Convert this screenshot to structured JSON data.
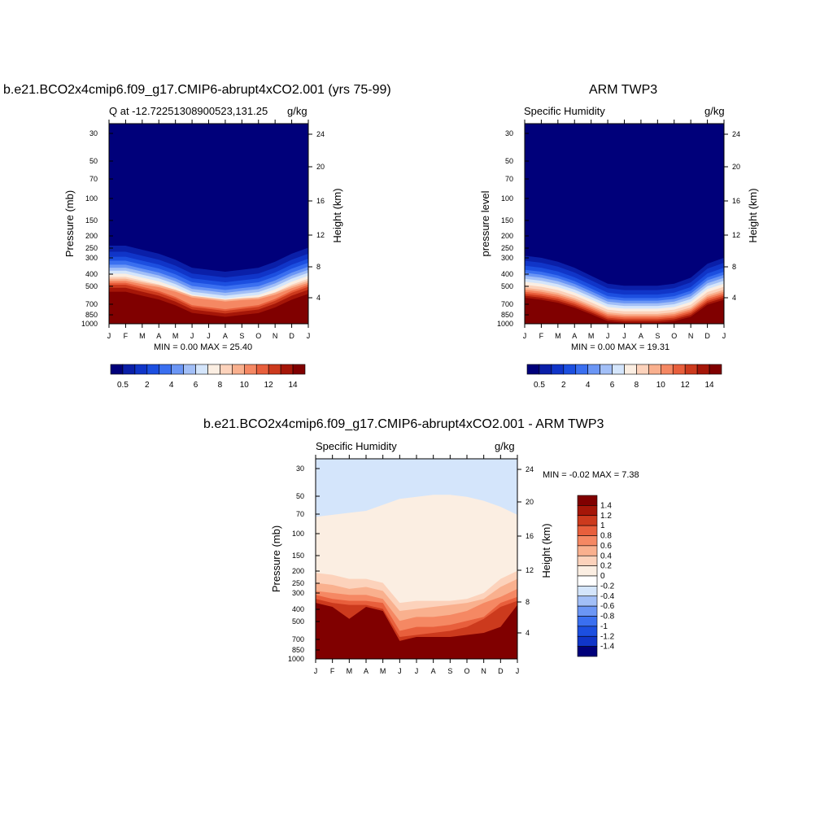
{
  "panels": [
    {
      "title": "b.e21.BCO2x4cmip6.f09_g17.CMIP6-abrupt4xCO2.001 (yrs 75-99)",
      "left_label": "Q at -12.72251308900523,131.25",
      "right_label": "g/kg",
      "ylabel": "Pressure (mb)",
      "ylabel_right": "Height (km)",
      "minmax": "MIN =   0.00 MAX =  25.40"
    },
    {
      "title": "ARM TWP3",
      "left_label": "Specific Humidity",
      "right_label": "g/kg",
      "ylabel": "pressure level",
      "ylabel_right": "Height (km)",
      "minmax": "MIN =   0.00 MAX =  19.31"
    },
    {
      "title": "b.e21.BCO2x4cmip6.f09_g17.CMIP6-abrupt4xCO2.001 - ARM TWP3",
      "left_label": "Specific Humidity",
      "right_label": "g/kg",
      "ylabel": "Pressure (mb)",
      "ylabel_right": "Height (km)",
      "minmax": "MIN =  -0.02 MAX =    7.38"
    }
  ],
  "chart_data": [
    {
      "type": "heatmap",
      "title": "b.e21.BCO2x4cmip6.f09_g17.CMIP6-abrupt4xCO2.001 (yrs 75-99)",
      "x_ticks": [
        "J",
        "F",
        "M",
        "A",
        "M",
        "J",
        "J",
        "A",
        "S",
        "O",
        "N",
        "D",
        "J"
      ],
      "y_ticks": [
        "30",
        "50",
        "70",
        "100",
        "150",
        "200",
        "250",
        "300",
        "400",
        "500",
        "700",
        "850",
        "1000"
      ],
      "y_right_ticks": [
        "4",
        "8",
        "12",
        "16",
        "20",
        "24"
      ],
      "xlabel": "",
      "ylabel": "Pressure (mb)",
      "ylabel_right": "Height (km)",
      "min": 0.0,
      "max": 25.4,
      "units": "g/kg",
      "colorbar_levels": [
        0.5,
        1,
        2,
        3,
        4,
        5,
        6,
        7,
        8,
        9,
        10,
        11,
        12,
        13,
        14
      ],
      "colorbar_labels": [
        "0.5",
        "2",
        "4",
        "6",
        "8",
        "10",
        "12",
        "14"
      ],
      "colors": [
        "#00007a",
        "#0a1fa8",
        "#1035c8",
        "#1c4fe0",
        "#3a6ff0",
        "#6b96f5",
        "#a2bff7",
        "#d4e5fb",
        "#fbeee2",
        "#fcd2bb",
        "#f9b08e",
        "#f58863",
        "#e85f3c",
        "#cc3a1d",
        "#a51608",
        "#800000"
      ]
    },
    {
      "type": "heatmap",
      "title": "ARM TWP3",
      "x_ticks": [
        "J",
        "F",
        "M",
        "A",
        "M",
        "J",
        "J",
        "A",
        "S",
        "O",
        "N",
        "D",
        "J"
      ],
      "y_ticks": [
        "30",
        "50",
        "70",
        "100",
        "150",
        "200",
        "250",
        "300",
        "400",
        "500",
        "700",
        "850",
        "1000"
      ],
      "y_right_ticks": [
        "4",
        "8",
        "12",
        "16",
        "20",
        "24"
      ],
      "xlabel": "",
      "ylabel": "pressure level",
      "ylabel_right": "Height (km)",
      "min": 0.0,
      "max": 19.31,
      "units": "g/kg",
      "colorbar_labels": [
        "0.5",
        "2",
        "4",
        "6",
        "8",
        "10",
        "12",
        "14"
      ]
    },
    {
      "type": "heatmap",
      "title": "b.e21.BCO2x4cmip6.f09_g17.CMIP6-abrupt4xCO2.001 - ARM TWP3",
      "x_ticks": [
        "J",
        "F",
        "M",
        "A",
        "M",
        "J",
        "J",
        "A",
        "S",
        "O",
        "N",
        "D",
        "J"
      ],
      "y_ticks": [
        "30",
        "50",
        "70",
        "100",
        "150",
        "200",
        "250",
        "300",
        "400",
        "500",
        "700",
        "850",
        "1000"
      ],
      "y_right_ticks": [
        "4",
        "8",
        "12",
        "16",
        "20",
        "24"
      ],
      "xlabel": "",
      "ylabel": "Pressure (mb)",
      "ylabel_right": "Height (km)",
      "min": -0.02,
      "max": 7.38,
      "units": "g/kg",
      "colorbar_labels": [
        "1.4",
        "1.2",
        "1",
        "0.8",
        "0.6",
        "0.4",
        "0.2",
        "0",
        "-0.2",
        "-0.4",
        "-0.6",
        "-0.8",
        "-1",
        "-1.2",
        "-1.4"
      ],
      "colors": [
        "#800000",
        "#a51608",
        "#cc3a1d",
        "#e85f3c",
        "#f58863",
        "#f9b08e",
        "#fcd2bb",
        "#fbeee2",
        "#ffffff",
        "#d4e5fb",
        "#a2bff7",
        "#6b96f5",
        "#3a6ff0",
        "#1c4fe0",
        "#1035c8",
        "#00007a"
      ]
    }
  ]
}
